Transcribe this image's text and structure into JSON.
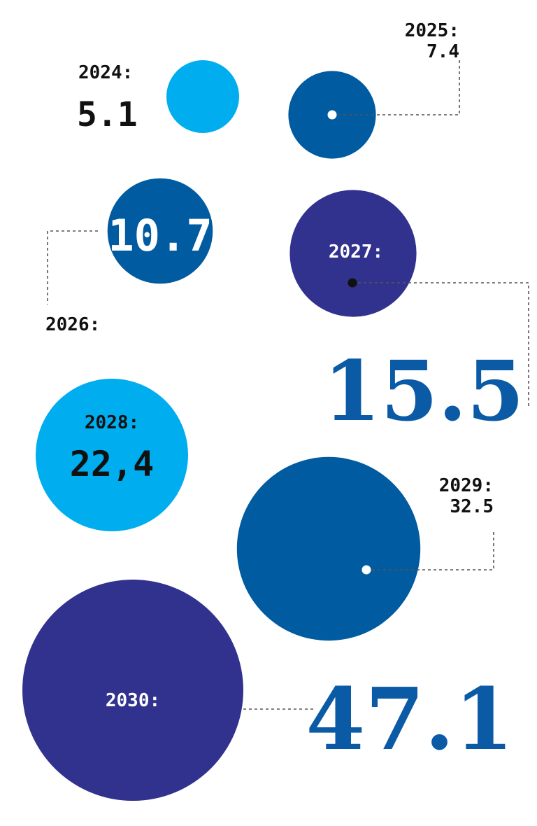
{
  "chart_data": {
    "type": "bubble",
    "title": "",
    "points": [
      {
        "year_label": "2024:",
        "value": 5.1,
        "value_label": "5.1",
        "color": "#00adef"
      },
      {
        "year_label": "2025:",
        "value": 7.4,
        "value_label": "7.4",
        "color": "#005ba1"
      },
      {
        "year_label": "2026:",
        "value": 10.7,
        "value_label": "10.7",
        "color": "#005ba1"
      },
      {
        "year_label": "2027:",
        "value": 15.5,
        "value_label": "15.5",
        "color": "#31318e"
      },
      {
        "year_label": "2028:",
        "value": 22.4,
        "value_label": "22,4",
        "color": "#00adef"
      },
      {
        "year_label": "2029:",
        "value": 32.5,
        "value_label": "32.5",
        "color": "#005ba1"
      },
      {
        "year_label": "2030:",
        "value": 47.1,
        "value_label": "47.1",
        "color": "#31318e"
      }
    ]
  },
  "colors": {
    "light_blue": "#00adef",
    "mid_blue": "#005ba1",
    "dark_indigo": "#31318e",
    "big_number_blue": "#0b5aa6",
    "text_dark": "#111111",
    "leader_line": "#444444"
  }
}
